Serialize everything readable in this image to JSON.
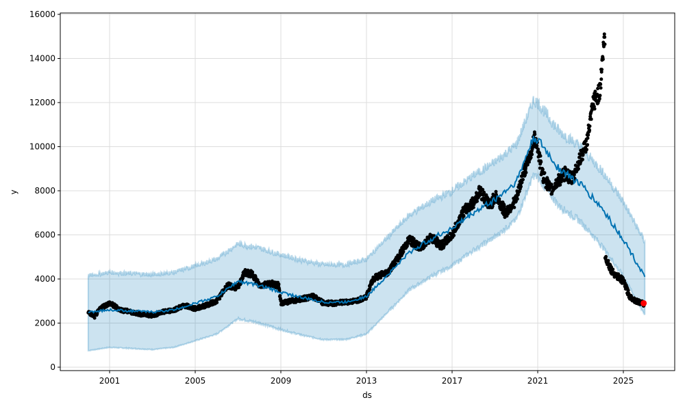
{
  "chart_data": {
    "type": "line",
    "title": "",
    "xlabel": "ds",
    "ylabel": "y",
    "xlim": [
      1999.0,
      2027.1
    ],
    "ylim": [
      -200,
      16100
    ],
    "grid": true,
    "x_ticks": [
      "2001",
      "2005",
      "2009",
      "2013",
      "2017",
      "2021",
      "2025"
    ],
    "x_tick_values": [
      2001,
      2005,
      2009,
      2013,
      2017,
      2021,
      2025
    ],
    "y_ticks": [
      "0",
      "2000",
      "4000",
      "6000",
      "8000",
      "10000",
      "12000",
      "14000",
      "16000"
    ],
    "y_tick_values": [
      0,
      2000,
      4000,
      6000,
      8000,
      10000,
      12000,
      14000,
      16000
    ],
    "colors": {
      "observed": "#000000",
      "forecast": "#0072B2",
      "interval": "#0072B2",
      "highlight": "#ff0000"
    },
    "series": [
      {
        "name": "observed",
        "type": "scatter",
        "x": [
          2000.0,
          2000.3,
          2000.6,
          2001.0,
          2001.5,
          2002.0,
          2002.5,
          2003.0,
          2003.5,
          2004.0,
          2004.5,
          2005.0,
          2005.5,
          2006.0,
          2006.5,
          2007.0,
          2007.3,
          2007.7,
          2008.0,
          2008.5,
          2008.9,
          2009.0,
          2009.5,
          2010.0,
          2010.5,
          2011.0,
          2011.5,
          2012.0,
          2012.5,
          2013.0,
          2013.3,
          2013.7,
          2014.0,
          2014.5,
          2015.0,
          2015.5,
          2016.0,
          2016.5,
          2017.0,
          2017.5,
          2018.0,
          2018.3,
          2018.8,
          2019.0,
          2019.5,
          2020.0,
          2020.3,
          2020.6,
          2020.9,
          2021.2,
          2021.6,
          2022.0,
          2022.3,
          2022.6,
          2023.0,
          2023.3,
          2023.6,
          2023.9,
          2024.1,
          2024.15,
          2024.5,
          2025.0,
          2025.3,
          2025.6,
          2026.0
        ],
        "y": [
          2500,
          2300,
          2700,
          2900,
          2600,
          2500,
          2400,
          2350,
          2500,
          2600,
          2800,
          2650,
          2800,
          3000,
          3700,
          3600,
          4300,
          4200,
          3700,
          3800,
          3700,
          2900,
          3000,
          3100,
          3200,
          2900,
          2900,
          2950,
          3000,
          3200,
          4000,
          4200,
          4300,
          5000,
          5800,
          5400,
          5900,
          5500,
          6000,
          7000,
          7500,
          8000,
          7300,
          7800,
          7000,
          7600,
          8700,
          9500,
          10500,
          8800,
          8000,
          8500,
          8800,
          8500,
          9500,
          10200,
          12000,
          12500,
          14800,
          5000,
          4300,
          3900,
          3200,
          3000,
          2850
        ]
      },
      {
        "name": "yhat",
        "type": "line",
        "x": [
          2000,
          2001,
          2002,
          2003,
          2004,
          2005,
          2006,
          2007,
          2008,
          2009,
          2010,
          2011,
          2012,
          2013,
          2014,
          2015,
          2016,
          2017,
          2018,
          2019,
          2020,
          2020.8,
          2021,
          2022,
          2023,
          2024,
          2025,
          2026
        ],
        "y": [
          2500,
          2600,
          2550,
          2500,
          2600,
          2900,
          3200,
          3900,
          3700,
          3400,
          3150,
          2950,
          2950,
          3200,
          4200,
          5200,
          5800,
          6300,
          7000,
          7600,
          8400,
          10400,
          10300,
          9000,
          8300,
          7200,
          5800,
          4100
        ]
      },
      {
        "name": "yhat_lower",
        "type": "area_lower",
        "x": [
          2000,
          2001,
          2002,
          2003,
          2004,
          2005,
          2006,
          2007,
          2008,
          2009,
          2010,
          2011,
          2012,
          2013,
          2014,
          2015,
          2016,
          2017,
          2018,
          2019,
          2020,
          2020.8,
          2021,
          2022,
          2023,
          2024,
          2025,
          2026
        ],
        "y": [
          750,
          900,
          850,
          800,
          900,
          1200,
          1500,
          2200,
          2000,
          1700,
          1450,
          1250,
          1250,
          1500,
          2500,
          3500,
          4100,
          4600,
          5300,
          5900,
          6700,
          8700,
          8600,
          7300,
          6600,
          5500,
          4100,
          2400
        ]
      },
      {
        "name": "yhat_upper",
        "type": "area_upper",
        "x": [
          2000,
          2001,
          2002,
          2003,
          2004,
          2005,
          2006,
          2007,
          2008,
          2009,
          2010,
          2011,
          2012,
          2013,
          2014,
          2015,
          2016,
          2017,
          2018,
          2019,
          2020,
          2020.8,
          2021,
          2022,
          2023,
          2024,
          2025,
          2026
        ],
        "y": [
          4150,
          4300,
          4250,
          4200,
          4300,
          4600,
          4900,
          5600,
          5400,
          5100,
          4850,
          4650,
          4650,
          4900,
          5900,
          6900,
          7500,
          8000,
          8700,
          9300,
          10100,
          12100,
          12000,
          10700,
          10000,
          8900,
          7500,
          5700
        ]
      },
      {
        "name": "last_observation",
        "type": "scatter",
        "x": [
          2025.95
        ],
        "y": [
          2900
        ]
      }
    ]
  }
}
